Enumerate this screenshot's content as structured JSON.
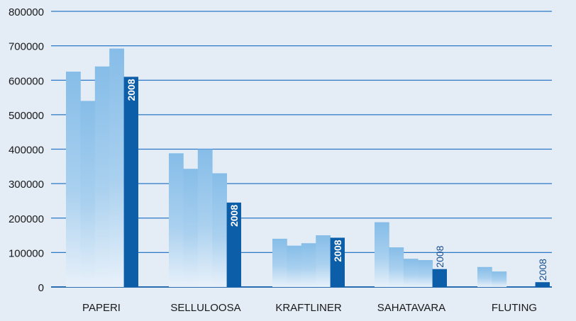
{
  "chart_data": {
    "type": "bar",
    "title": "",
    "xlabel": "",
    "ylabel": "",
    "ylim": [
      0,
      800000
    ],
    "yticks": [
      0,
      100000,
      200000,
      300000,
      400000,
      500000,
      600000,
      700000,
      800000
    ],
    "ytick_labels": [
      "0",
      "100000",
      "200000",
      "300000",
      "400000",
      "500000",
      "600000",
      "700000",
      "800000"
    ],
    "grid": true,
    "highlight_label": "2008",
    "colors": {
      "past": "#86bde8",
      "highlight": "#0d5ea8",
      "grid": "#2a78c6",
      "background": "#e4ecf6"
    },
    "categories": [
      "PAPERI",
      "SELLULOOSA",
      "KRAFTLINER",
      "SAHATAVARA",
      "FLUTING"
    ],
    "groups": [
      {
        "category": "PAPERI",
        "values": [
          625000,
          540000,
          640000,
          692000,
          610000
        ]
      },
      {
        "category": "SELLULOOSA",
        "values": [
          388000,
          343000,
          400000,
          330000,
          245000
        ]
      },
      {
        "category": "KRAFTLINER",
        "values": [
          140000,
          120000,
          127000,
          150000,
          143000
        ]
      },
      {
        "category": "SAHATAVARA",
        "values": [
          188000,
          115000,
          82000,
          78000,
          52000
        ]
      },
      {
        "category": "FLUTING",
        "values": [
          58000,
          45000,
          0,
          0,
          14000
        ]
      }
    ]
  }
}
